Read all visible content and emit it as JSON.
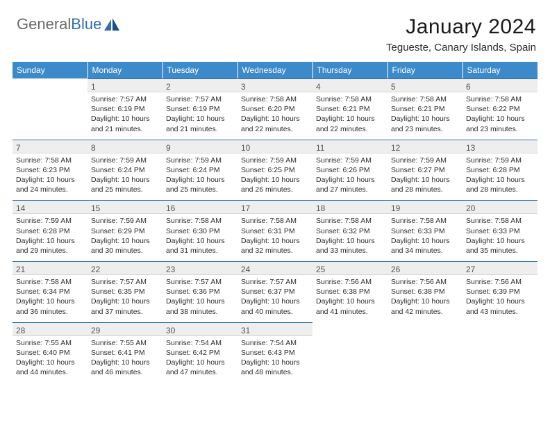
{
  "logo": {
    "text1": "General",
    "text2": "Blue"
  },
  "title": "January 2024",
  "location": "Tegueste, Canary Islands, Spain",
  "colors": {
    "header_bg": "#3c8ac9",
    "header_text": "#ffffff",
    "daynum_bg": "#eeeeee",
    "border_blue": "#2f6fb0",
    "body_text": "#2b2b2b",
    "logo_gray": "#6b6b6b",
    "logo_blue": "#2f6fb0",
    "page_bg": "#ffffff"
  },
  "typography": {
    "title_fontsize": 30,
    "location_fontsize": 15,
    "weekday_fontsize": 12,
    "daynum_fontsize": 12,
    "cell_fontsize": 10.5
  },
  "weekdays": [
    "Sunday",
    "Monday",
    "Tuesday",
    "Wednesday",
    "Thursday",
    "Friday",
    "Saturday"
  ],
  "start_offset": 1,
  "days": [
    {
      "n": "1",
      "sunrise": "7:57 AM",
      "sunset": "6:19 PM",
      "daylight": "10 hours and 21 minutes."
    },
    {
      "n": "2",
      "sunrise": "7:57 AM",
      "sunset": "6:19 PM",
      "daylight": "10 hours and 21 minutes."
    },
    {
      "n": "3",
      "sunrise": "7:58 AM",
      "sunset": "6:20 PM",
      "daylight": "10 hours and 22 minutes."
    },
    {
      "n": "4",
      "sunrise": "7:58 AM",
      "sunset": "6:21 PM",
      "daylight": "10 hours and 22 minutes."
    },
    {
      "n": "5",
      "sunrise": "7:58 AM",
      "sunset": "6:21 PM",
      "daylight": "10 hours and 23 minutes."
    },
    {
      "n": "6",
      "sunrise": "7:58 AM",
      "sunset": "6:22 PM",
      "daylight": "10 hours and 23 minutes."
    },
    {
      "n": "7",
      "sunrise": "7:58 AM",
      "sunset": "6:23 PM",
      "daylight": "10 hours and 24 minutes."
    },
    {
      "n": "8",
      "sunrise": "7:59 AM",
      "sunset": "6:24 PM",
      "daylight": "10 hours and 25 minutes."
    },
    {
      "n": "9",
      "sunrise": "7:59 AM",
      "sunset": "6:24 PM",
      "daylight": "10 hours and 25 minutes."
    },
    {
      "n": "10",
      "sunrise": "7:59 AM",
      "sunset": "6:25 PM",
      "daylight": "10 hours and 26 minutes."
    },
    {
      "n": "11",
      "sunrise": "7:59 AM",
      "sunset": "6:26 PM",
      "daylight": "10 hours and 27 minutes."
    },
    {
      "n": "12",
      "sunrise": "7:59 AM",
      "sunset": "6:27 PM",
      "daylight": "10 hours and 28 minutes."
    },
    {
      "n": "13",
      "sunrise": "7:59 AM",
      "sunset": "6:28 PM",
      "daylight": "10 hours and 28 minutes."
    },
    {
      "n": "14",
      "sunrise": "7:59 AM",
      "sunset": "6:28 PM",
      "daylight": "10 hours and 29 minutes."
    },
    {
      "n": "15",
      "sunrise": "7:59 AM",
      "sunset": "6:29 PM",
      "daylight": "10 hours and 30 minutes."
    },
    {
      "n": "16",
      "sunrise": "7:58 AM",
      "sunset": "6:30 PM",
      "daylight": "10 hours and 31 minutes."
    },
    {
      "n": "17",
      "sunrise": "7:58 AM",
      "sunset": "6:31 PM",
      "daylight": "10 hours and 32 minutes."
    },
    {
      "n": "18",
      "sunrise": "7:58 AM",
      "sunset": "6:32 PM",
      "daylight": "10 hours and 33 minutes."
    },
    {
      "n": "19",
      "sunrise": "7:58 AM",
      "sunset": "6:33 PM",
      "daylight": "10 hours and 34 minutes."
    },
    {
      "n": "20",
      "sunrise": "7:58 AM",
      "sunset": "6:33 PM",
      "daylight": "10 hours and 35 minutes."
    },
    {
      "n": "21",
      "sunrise": "7:58 AM",
      "sunset": "6:34 PM",
      "daylight": "10 hours and 36 minutes."
    },
    {
      "n": "22",
      "sunrise": "7:57 AM",
      "sunset": "6:35 PM",
      "daylight": "10 hours and 37 minutes."
    },
    {
      "n": "23",
      "sunrise": "7:57 AM",
      "sunset": "6:36 PM",
      "daylight": "10 hours and 38 minutes."
    },
    {
      "n": "24",
      "sunrise": "7:57 AM",
      "sunset": "6:37 PM",
      "daylight": "10 hours and 40 minutes."
    },
    {
      "n": "25",
      "sunrise": "7:56 AM",
      "sunset": "6:38 PM",
      "daylight": "10 hours and 41 minutes."
    },
    {
      "n": "26",
      "sunrise": "7:56 AM",
      "sunset": "6:38 PM",
      "daylight": "10 hours and 42 minutes."
    },
    {
      "n": "27",
      "sunrise": "7:56 AM",
      "sunset": "6:39 PM",
      "daylight": "10 hours and 43 minutes."
    },
    {
      "n": "28",
      "sunrise": "7:55 AM",
      "sunset": "6:40 PM",
      "daylight": "10 hours and 44 minutes."
    },
    {
      "n": "29",
      "sunrise": "7:55 AM",
      "sunset": "6:41 PM",
      "daylight": "10 hours and 46 minutes."
    },
    {
      "n": "30",
      "sunrise": "7:54 AM",
      "sunset": "6:42 PM",
      "daylight": "10 hours and 47 minutes."
    },
    {
      "n": "31",
      "sunrise": "7:54 AM",
      "sunset": "6:43 PM",
      "daylight": "10 hours and 48 minutes."
    }
  ],
  "labels": {
    "sunrise": "Sunrise:",
    "sunset": "Sunset:",
    "daylight": "Daylight:"
  }
}
